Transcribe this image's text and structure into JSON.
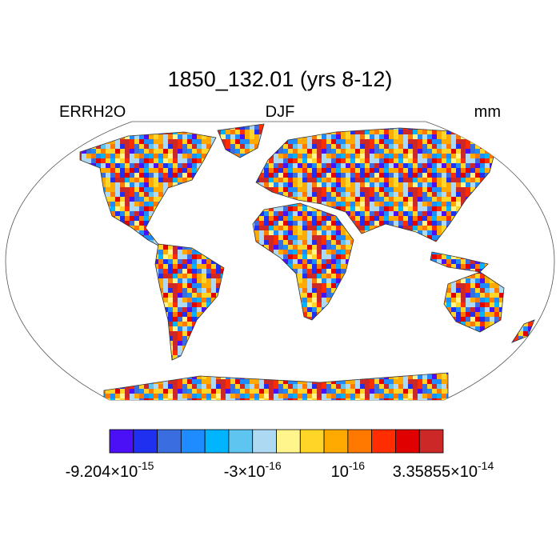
{
  "title": "1850_132.01 (yrs 8-12)",
  "left_label": "ERRH2O",
  "center_label": "DJF",
  "right_label": "mm",
  "colorbar": {
    "colors": [
      "#4b10f5",
      "#1f30f0",
      "#3a6de0",
      "#1e8cff",
      "#00b4ff",
      "#5ec5f0",
      "#aed9f2",
      "#fff58c",
      "#ffd528",
      "#ffaa00",
      "#ff7800",
      "#ff2d00",
      "#e00000",
      "#cc2828"
    ],
    "labels": [
      {
        "base": "-9.204×10",
        "exp": "-15"
      },
      {
        "base": "-3×10",
        "exp": "-16"
      },
      {
        "base": "10",
        "exp": "-16"
      },
      {
        "base": "3.35855×10",
        "exp": "-14"
      }
    ]
  }
}
